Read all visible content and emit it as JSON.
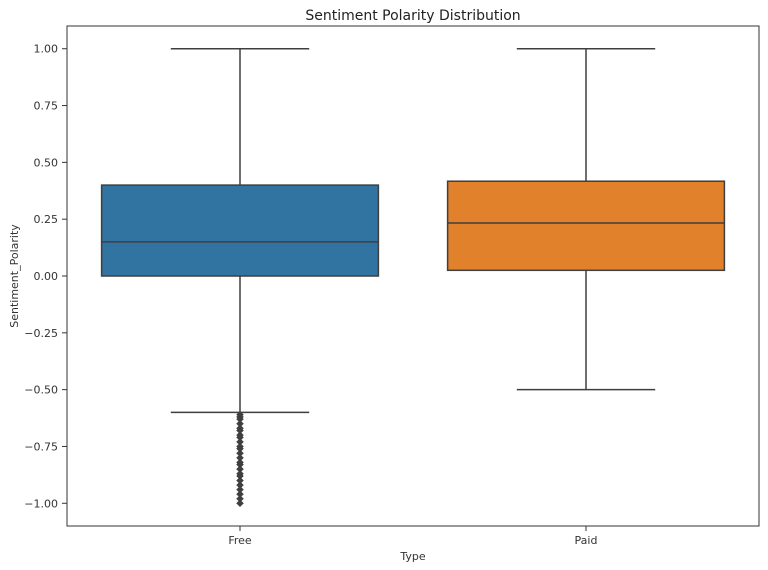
{
  "chart_data": {
    "type": "box",
    "title": "Sentiment Polarity Distribution",
    "xlabel": "Type",
    "ylabel": "Sentiment_Polarity",
    "ylim": [
      -1.1,
      1.1
    ],
    "yticks": [
      1.0,
      0.75,
      0.5,
      0.25,
      0.0,
      -0.25,
      -0.5,
      -0.75,
      -1.0
    ],
    "ytick_labels": [
      "1.00",
      "0.75",
      "0.50",
      "0.25",
      "0.00",
      "−0.25",
      "−0.50",
      "−0.75",
      "−1.00"
    ],
    "grid": false,
    "categories": [
      "Free",
      "Paid"
    ],
    "boxes": [
      {
        "category": "Free",
        "whisker_low": -0.6,
        "q1": 0.0,
        "median": 0.15,
        "q3": 0.4,
        "whisker_high": 1.0,
        "outliers": [
          -0.61,
          -0.62,
          -0.63,
          -0.65,
          -0.67,
          -0.68,
          -0.7,
          -0.71,
          -0.73,
          -0.75,
          -0.76,
          -0.78,
          -0.8,
          -0.82,
          -0.83,
          -0.85,
          -0.87,
          -0.88,
          -0.9,
          -0.92,
          -0.94,
          -0.96,
          -0.98,
          -1.0
        ],
        "color": "#3274a1"
      },
      {
        "category": "Paid",
        "whisker_low": -0.5,
        "q1": 0.025,
        "median": 0.233,
        "q3": 0.417,
        "whisker_high": 1.0,
        "outliers": [],
        "color": "#e1812c"
      }
    ],
    "line_color": "#3f3f3f"
  }
}
